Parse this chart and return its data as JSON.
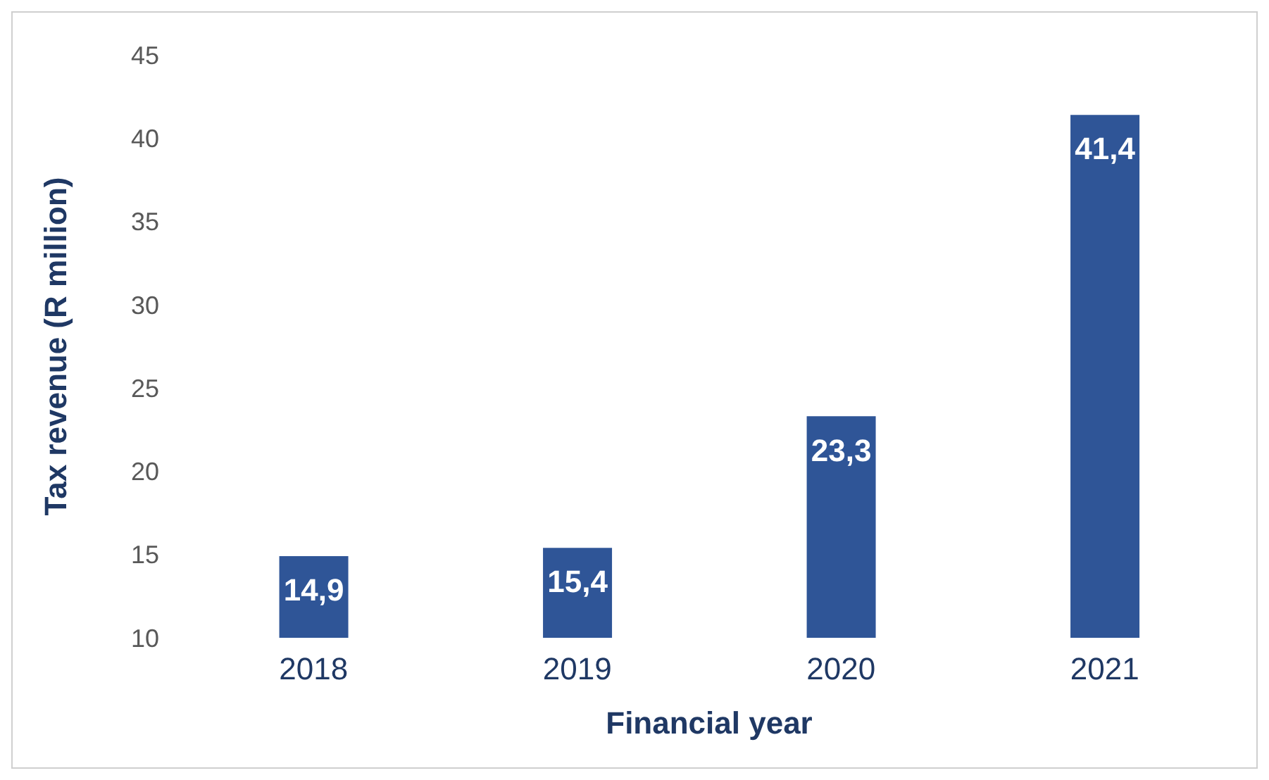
{
  "chart_data": {
    "type": "bar",
    "xlabel": "Financial  year",
    "ylabel": "Tax revenue (R million)",
    "categories": [
      "2018",
      "2019",
      "2020",
      "2021"
    ],
    "values": [
      14.9,
      15.4,
      23.3,
      41.4
    ],
    "color": "#2f5597",
    "value_labels": [
      "14,9",
      "15,4",
      "23,3",
      "41,4"
    ],
    "ylim": [
      10,
      45
    ],
    "yticks": [
      10,
      15,
      20,
      25,
      30,
      35,
      40,
      45
    ],
    "grid": false
  }
}
